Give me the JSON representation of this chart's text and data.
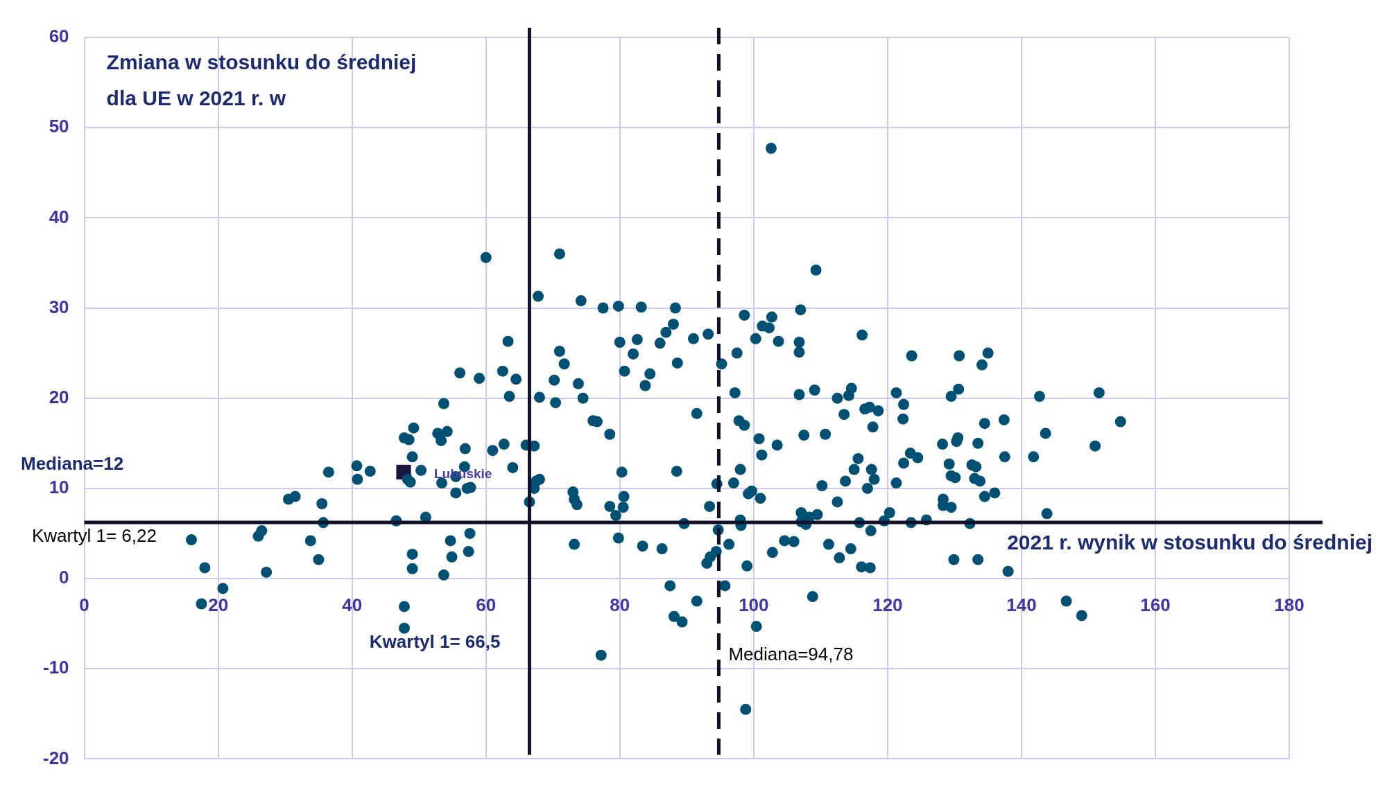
{
  "chart_data": {
    "type": "scatter",
    "xlabel": "2021 r. wynik w stosunku do średniej",
    "ylabel": "Zmiana w stosunku do średniej dla UE w 2021 r. w",
    "xlim": [
      0,
      180
    ],
    "xticks": [
      0,
      20,
      40,
      60,
      80,
      100,
      120,
      140,
      160,
      180
    ],
    "ylim": [
      -20,
      60
    ],
    "yticks": [
      -20,
      -10,
      0,
      10,
      20,
      30,
      40,
      50,
      60
    ],
    "grid": true,
    "legend": false,
    "ref_lines": [
      {
        "axis": "x",
        "value": 66.5,
        "label": "Kwartyl 1= 66,5",
        "color": "#12112b",
        "line_style": "solid"
      },
      {
        "axis": "x",
        "value": 94.78,
        "label": "Mediana=94,78",
        "color": "#12112b",
        "line_style": "dashed"
      },
      {
        "axis": "y",
        "value": 6.22,
        "label": "Kwartyl 1= 6,22",
        "color": "#12112b",
        "line_style": "solid"
      }
    ],
    "annotations": [
      "Mediana=12"
    ],
    "series": [
      {
        "color": "#005073",
        "marker": "circle",
        "x": [
          16,
          17.5,
          18,
          20.7,
          26,
          26.5,
          27.2,
          30.5,
          31.5,
          33.8,
          35,
          35.5,
          35.7,
          36.5,
          40.7,
          40.8,
          42.7,
          46.6,
          47.8,
          48.5,
          47.8,
          47.8,
          48.3,
          48.7,
          49,
          49.2,
          49,
          49,
          50.3,
          51,
          52.8,
          53.3,
          53.7,
          53.4,
          54.2,
          53.7,
          54.7,
          54.9,
          55.5,
          55.5,
          56.1,
          56.9,
          56.8,
          57.2,
          57.7,
          57.4,
          57.6,
          59,
          60,
          61,
          62.5,
          62.7,
          63.3,
          63.5,
          64,
          64.5,
          66,
          66.5,
          67.2,
          67.2,
          67.5,
          67.8,
          68,
          68,
          70.2,
          70.4,
          71,
          71,
          71.7,
          73,
          73.2,
          73.6,
          73.2,
          73.8,
          74.2,
          74.5,
          76,
          76.6,
          77.2,
          77.5,
          78.5,
          78.5,
          79.4,
          79.8,
          79.8,
          80,
          80.3,
          80.6,
          80.5,
          80.7,
          82,
          82.6,
          83.2,
          83.4,
          83.8,
          84.5,
          86,
          86.3,
          86.9,
          87.5,
          88,
          88.3,
          88.1,
          88.6,
          88.5,
          89.3,
          89.6,
          91,
          91.5,
          91.5,
          93.2,
          93.4,
          93,
          93.5,
          94.4,
          94.5,
          94.7,
          95.2,
          95.7,
          96.3,
          97,
          97.2,
          97.5,
          97.8,
          98,
          98,
          98.1,
          98.6,
          98.6,
          99,
          98.8,
          99.2,
          99.7,
          100.3,
          100.8,
          100.4,
          101.2,
          101,
          101.3,
          102.3,
          102.6,
          102.8,
          102.7,
          103.5,
          103.7,
          104.6,
          106,
          106.8,
          106.8,
          106.8,
          107,
          107.1,
          107.1,
          107.5,
          107.8,
          108.3,
          108.8,
          109.1,
          109.3,
          109.5,
          110.7,
          110.2,
          111.2,
          112.5,
          112.5,
          112.8,
          113.5,
          113.7,
          114.2,
          114.6,
          114.5,
          115,
          115.6,
          115.8,
          116.1,
          116.2,
          116.6,
          117,
          117.5,
          117.4,
          117.3,
          117.6,
          117.8,
          118,
          118.6,
          119.5,
          120.3,
          121.3,
          121.3,
          122.4,
          122.3,
          122.4,
          123.4,
          123.5,
          123.6,
          124.5,
          125.8,
          128.2,
          128.3,
          128.3,
          129.2,
          129.5,
          129.5,
          129.5,
          129.9,
          130.1,
          130.3,
          130.5,
          130.6,
          130.7,
          132.3,
          132.6,
          133,
          133.2,
          133.5,
          133.5,
          133.8,
          134.1,
          134.5,
          134.5,
          135,
          136,
          137.5,
          137.4,
          138,
          141.8,
          142.7,
          143.6,
          143.8,
          146.7,
          149,
          151,
          151.6,
          154.8
        ],
        "values": [
          4.3,
          -2.8,
          1.2,
          -1.1,
          4.7,
          5.3,
          0.7,
          8.8,
          9.1,
          4.2,
          2.1,
          8.3,
          6.2,
          11.8,
          12.5,
          11,
          11.9,
          6.4,
          15.6,
          15.4,
          -3.1,
          -5.5,
          11,
          10.7,
          13.5,
          16.7,
          2.7,
          1.1,
          12,
          6.8,
          16.1,
          15.3,
          19.4,
          10.6,
          16.3,
          0.4,
          4.2,
          2.4,
          9.5,
          11.3,
          22.8,
          14.4,
          12.4,
          10,
          10.1,
          3,
          5,
          22.2,
          35.6,
          14.2,
          23,
          14.9,
          26.3,
          20.2,
          12.3,
          22.1,
          14.8,
          8.5,
          14.7,
          10,
          10.8,
          31.3,
          20.1,
          11,
          22,
          19.5,
          36,
          25.2,
          23.8,
          9.6,
          8.8,
          8.2,
          3.8,
          21.6,
          30.8,
          20,
          17.5,
          17.4,
          -8.5,
          30,
          16,
          8,
          7,
          30.2,
          4.5,
          26.2,
          11.8,
          9.1,
          7.9,
          23,
          24.9,
          26.5,
          30.1,
          3.6,
          21.4,
          22.7,
          26.1,
          3.3,
          27.3,
          -0.8,
          28.2,
          30,
          -4.2,
          23.9,
          11.9,
          -4.8,
          6.1,
          26.6,
          18.3,
          -2.5,
          27.1,
          8,
          1.7,
          2.4,
          3,
          10.5,
          5.4,
          23.8,
          -0.8,
          3.8,
          10.6,
          20.6,
          25,
          17.5,
          12.1,
          6.5,
          5.9,
          17,
          29.2,
          1.4,
          -14.5,
          9.4,
          9.7,
          26.6,
          15.5,
          -5.3,
          13.7,
          8.9,
          28,
          27.8,
          47.7,
          2.9,
          29,
          14.8,
          26.3,
          4.2,
          4.1,
          26.2,
          25.1,
          20.4,
          29.8,
          7.3,
          6.3,
          15.9,
          6,
          6.8,
          -2,
          20.9,
          34.2,
          7.1,
          16,
          10.3,
          3.8,
          20,
          8.5,
          2.3,
          18.2,
          10.8,
          20.3,
          21.1,
          3.3,
          12.1,
          13.3,
          6.2,
          1.3,
          27,
          18.8,
          10,
          5.3,
          1.2,
          19,
          12.1,
          16.8,
          11,
          18.6,
          6.4,
          7.3,
          20.6,
          10.6,
          19.3,
          17.7,
          12.8,
          13.9,
          6.2,
          24.7,
          13.4,
          6.5,
          14.9,
          8.8,
          8.1,
          12.7,
          7.9,
          20.2,
          11.4,
          2.1,
          11.2,
          15.2,
          15.6,
          21,
          24.7,
          6.1,
          12.6,
          11.1,
          12.4,
          2.1,
          15,
          10.8,
          23.7,
          17.2,
          9.1,
          25,
          9.5,
          13.5,
          17.6,
          0.8,
          13.5,
          20.2,
          16.1,
          7.2,
          -2.5,
          -4.1,
          14.7,
          20.6,
          17.4
        ]
      },
      {
        "name": "Lubuskie",
        "color": "#1b1640",
        "marker": "square",
        "x": [
          47.7
        ],
        "values": [
          11.8
        ]
      }
    ]
  }
}
